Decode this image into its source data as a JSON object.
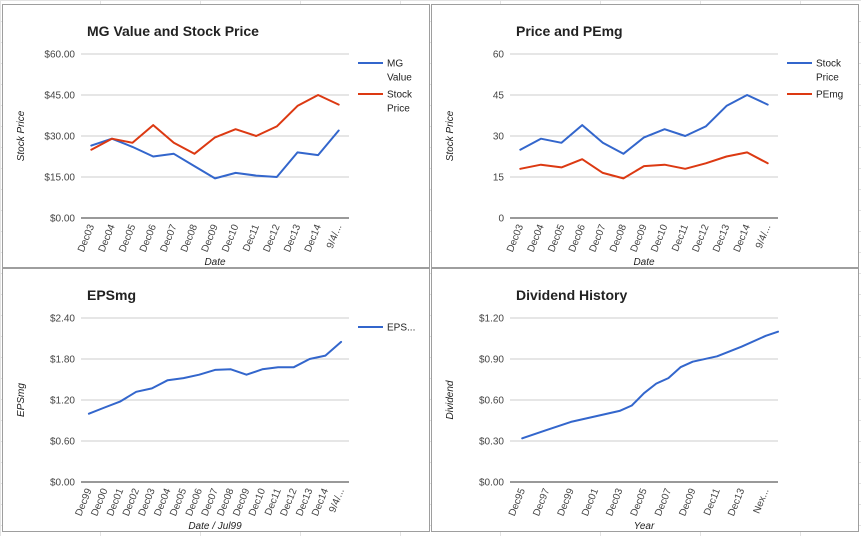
{
  "chart_data": [
    {
      "type": "line",
      "title": "MG Value and Stock Price",
      "xlabel": "Date",
      "ylabel": "Stock Price",
      "ylim": [
        0,
        60
      ],
      "y_ticks": [
        "$0.00",
        "$15.00",
        "$30.00",
        "$45.00",
        "$60.00"
      ],
      "categories": [
        "Dec03",
        "Dec04",
        "Dec05",
        "Dec06",
        "Dec07",
        "Dec08",
        "Dec09",
        "Dec10",
        "Dec11",
        "Dec12",
        "Dec13",
        "Dec14",
        "9/4/..."
      ],
      "series": [
        {
          "name": "MG Value",
          "legend": [
            "MG",
            "Value"
          ],
          "color": "#3366cc",
          "values": [
            26.5,
            29,
            26,
            22.5,
            23.5,
            19,
            14.5,
            16.5,
            15.5,
            15,
            24,
            23,
            32
          ]
        },
        {
          "name": "Stock Price",
          "legend": [
            "Stock",
            "Price"
          ],
          "color": "#dc3912",
          "values": [
            25,
            29,
            27.5,
            34,
            27.5,
            23.5,
            29.5,
            32.5,
            30,
            33.5,
            41,
            45,
            41.5
          ]
        }
      ],
      "grid": true,
      "legend_position": "right"
    },
    {
      "type": "line",
      "title": "Price and PEmg",
      "xlabel": "Date",
      "ylabel": "Stock Price",
      "ylim": [
        0,
        60
      ],
      "y_ticks": [
        "0",
        "15",
        "30",
        "45",
        "60"
      ],
      "categories": [
        "Dec03",
        "Dec04",
        "Dec05",
        "Dec06",
        "Dec07",
        "Dec08",
        "Dec09",
        "Dec10",
        "Dec11",
        "Dec12",
        "Dec13",
        "Dec14",
        "9/4/..."
      ],
      "series": [
        {
          "name": "Stock Price",
          "legend": [
            "Stock",
            "Price"
          ],
          "color": "#3366cc",
          "values": [
            25,
            29,
            27.5,
            34,
            27.5,
            23.5,
            29.5,
            32.5,
            30,
            33.5,
            41,
            45,
            41.5
          ]
        },
        {
          "name": "PEmg",
          "legend": [
            "PEmg"
          ],
          "color": "#dc3912",
          "values": [
            18,
            19.5,
            18.5,
            21.5,
            16.5,
            14.5,
            19,
            19.5,
            18,
            20,
            22.5,
            24,
            20
          ]
        }
      ],
      "grid": true,
      "legend_position": "right"
    },
    {
      "type": "line",
      "title": "EPSmg",
      "xlabel": "Date / Jul99",
      "ylabel": "EPSmg",
      "ylim": [
        0,
        2.4
      ],
      "y_ticks": [
        "$0.00",
        "$0.60",
        "$1.20",
        "$1.80",
        "$2.40"
      ],
      "categories": [
        "Dec99",
        "Dec00",
        "Dec01",
        "Dec02",
        "Dec03",
        "Dec04",
        "Dec05",
        "Dec06",
        "Dec07",
        "Dec08",
        "Dec09",
        "Dec10",
        "Dec11",
        "Dec12",
        "Dec13",
        "Dec14",
        "9/4/..."
      ],
      "series": [
        {
          "name": "EPSmg",
          "legend": [
            "EPS..."
          ],
          "color": "#3366cc",
          "values": [
            1.0,
            1.09,
            1.18,
            1.32,
            1.37,
            1.49,
            1.52,
            1.57,
            1.64,
            1.65,
            1.57,
            1.65,
            1.68,
            1.68,
            1.8,
            1.85,
            2.05
          ]
        }
      ],
      "grid": true,
      "legend_position": "right"
    },
    {
      "type": "line",
      "title": "Dividend History",
      "xlabel": "Year",
      "ylabel": "Dividend",
      "ylim": [
        0,
        1.2
      ],
      "y_ticks": [
        "$0.00",
        "$0.30",
        "$0.60",
        "$0.90",
        "$1.20"
      ],
      "categories": [
        "Dec95",
        "Dec97",
        "Dec99",
        "Dec01",
        "Dec03",
        "Dec05",
        "Dec07",
        "Dec09",
        "Dec11",
        "Dec13",
        "Nex..."
      ],
      "series": [
        {
          "name": "Dividend",
          "color": "#3366cc",
          "x": [
            0,
            1,
            2,
            3,
            4,
            4.5,
            5,
            5.5,
            6,
            6.5,
            7,
            8,
            9,
            10,
            10.5
          ],
          "values": [
            0.32,
            0.38,
            0.44,
            0.48,
            0.52,
            0.56,
            0.65,
            0.72,
            0.76,
            0.84,
            0.88,
            0.92,
            0.99,
            1.07,
            1.1
          ]
        }
      ],
      "grid": true,
      "legend_position": "none"
    }
  ]
}
